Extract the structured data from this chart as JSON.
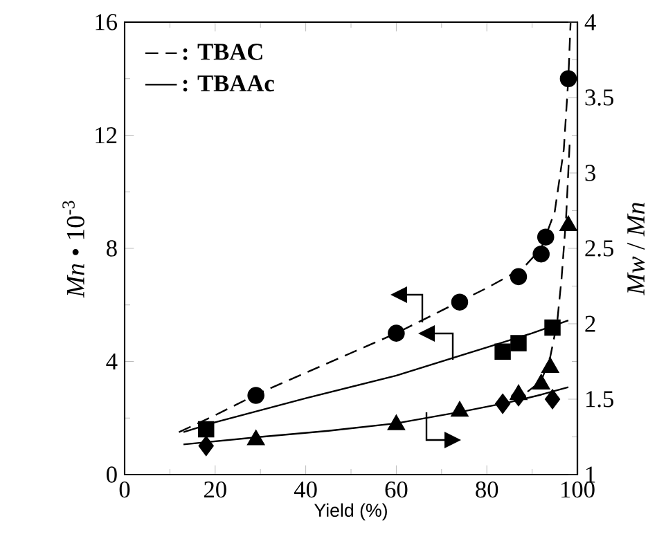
{
  "chart_data": {
    "type": "scatter",
    "xlabel": "Yield (%)",
    "ylabel": "*Mn* • 10$^{-3}$",
    "y2label": "*Mw* / *Mn*",
    "xlim": [
      0,
      100
    ],
    "xticks": [
      0,
      20,
      40,
      60,
      80,
      100
    ],
    "ylim": [
      0,
      16
    ],
    "yticks": [
      0,
      4,
      8,
      12,
      16
    ],
    "y2lim": [
      1,
      4
    ],
    "y2ticks": [
      1,
      1.5,
      2,
      2.5,
      3,
      3.5,
      4
    ],
    "legend": "top left",
    "grid": false,
    "series": [
      {
        "type": "line",
        "name": ": TBAC",
        "color": "#000000",
        "line_style": "dashed",
        "marker": "none",
        "x": [
          12,
          20,
          30,
          40,
          50,
          60,
          70,
          80,
          88,
          92,
          95,
          97,
          98,
          98.5
        ],
        "values": [
          1.5,
          2.1,
          2.9,
          3.6,
          4.3,
          5.0,
          5.8,
          6.6,
          7.3,
          8.0,
          9.3,
          11.5,
          14.0,
          16.0
        ]
      },
      {
        "type": "line",
        "name": ": TBAAc",
        "color": "#000000",
        "line_style": "solid",
        "marker": "none",
        "x": [
          13,
          20,
          40,
          60,
          70,
          80,
          90,
          98
        ],
        "values": [
          1.5,
          1.85,
          2.7,
          3.5,
          4.0,
          4.5,
          5.0,
          5.45
        ]
      },
      {
        "type": "line",
        "axis": "y2",
        "color": "#000000",
        "line_style": "dashed",
        "marker": "none",
        "x": [
          89,
          92,
          94,
          95.5,
          96.5,
          97.5,
          98.3
        ],
        "values": [
          1.55,
          1.62,
          1.78,
          2.0,
          2.3,
          2.7,
          3.2
        ]
      },
      {
        "type": "line",
        "axis": "y2",
        "color": "#000000",
        "line_style": "solid",
        "marker": "none",
        "x": [
          13,
          30,
          45,
          60,
          75,
          85,
          92,
          98
        ],
        "values": [
          1.2,
          1.25,
          1.29,
          1.34,
          1.42,
          1.48,
          1.53,
          1.58
        ]
      },
      {
        "type": "scatter",
        "color": "#000000",
        "marker": "circle",
        "x": [
          29,
          60,
          74,
          87,
          92,
          93,
          98
        ],
        "values": [
          2.8,
          5.0,
          6.1,
          7.0,
          7.8,
          8.4,
          14.0
        ]
      },
      {
        "type": "scatter",
        "color": "#000000",
        "marker": "square",
        "x": [
          18,
          83.5,
          87,
          94.5
        ],
        "values": [
          1.6,
          4.35,
          4.65,
          5.2
        ]
      },
      {
        "type": "scatter",
        "axis": "y2",
        "color": "#000000",
        "marker": "diamond",
        "x": [
          18,
          83.5,
          87,
          94.5
        ],
        "values": [
          1.19,
          1.47,
          1.52,
          1.5
        ]
      },
      {
        "type": "scatter",
        "axis": "y2",
        "color": "#000000",
        "marker": "triangle",
        "x": [
          29,
          60,
          74,
          87,
          92,
          94,
          98
        ],
        "values": [
          1.23,
          1.33,
          1.42,
          1.53,
          1.6,
          1.71,
          2.65
        ]
      }
    ]
  }
}
